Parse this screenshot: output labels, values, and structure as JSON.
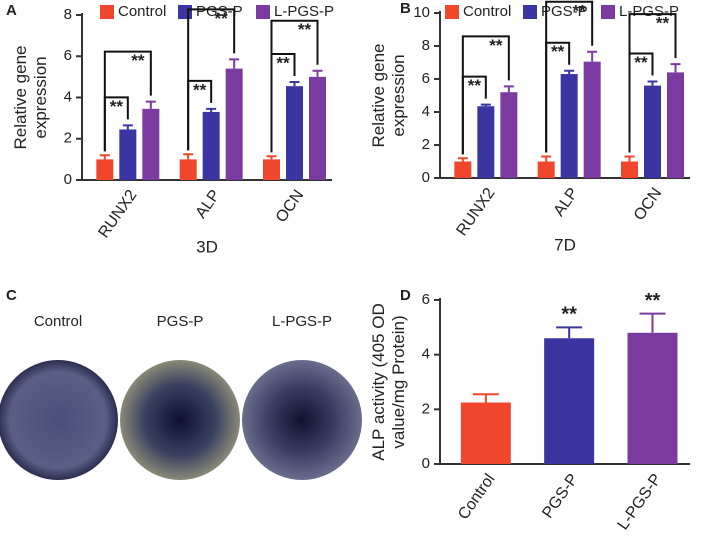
{
  "chart_data": [
    {
      "type": "grouped_bar",
      "panel": "A",
      "ylabel": [
        "Relative gene",
        "expression"
      ],
      "xlabel": "3D",
      "categories": [
        "RUNX2",
        "ALP",
        "OCN"
      ],
      "series": [
        {
          "name": "Control",
          "color": "#f0462b",
          "values": [
            1,
            1,
            1
          ],
          "errors": [
            0.2,
            0.25,
            0.15
          ]
        },
        {
          "name": "PGS-P",
          "color": "#3a35a0",
          "values": [
            2.45,
            3.3,
            4.55
          ],
          "errors": [
            0.2,
            0.15,
            0.2
          ]
        },
        {
          "name": "L-PGS-P",
          "color": "#7b3aa0",
          "values": [
            3.45,
            5.4,
            5.0
          ],
          "errors": [
            0.35,
            0.45,
            0.3
          ]
        }
      ],
      "brackets": [
        [
          0,
          1
        ],
        [
          0,
          2
        ]
      ],
      "bracket_label": "**",
      "ylim": [
        0,
        8
      ],
      "yticks": [
        0,
        2,
        4,
        6,
        8
      ]
    },
    {
      "type": "grouped_bar",
      "panel": "B",
      "ylabel": [
        "Relative gene",
        "expression"
      ],
      "xlabel": "7D",
      "categories": [
        "RUNX2",
        "ALP",
        "OCN"
      ],
      "series": [
        {
          "name": "Control",
          "color": "#f0462b",
          "values": [
            1,
            1,
            1
          ],
          "errors": [
            0.2,
            0.3,
            0.3
          ]
        },
        {
          "name": "PGS-P",
          "color": "#3a35a0",
          "values": [
            4.35,
            6.3,
            5.6
          ],
          "errors": [
            0.1,
            0.2,
            0.25
          ]
        },
        {
          "name": "L-PGS-P",
          "color": "#7b3aa0",
          "values": [
            5.2,
            7.05,
            6.4
          ],
          "errors": [
            0.35,
            0.6,
            0.5
          ]
        }
      ],
      "brackets": [
        [
          0,
          1
        ],
        [
          0,
          2
        ]
      ],
      "bracket_label": "**",
      "ylim": [
        0,
        10
      ],
      "yticks": [
        0,
        2,
        4,
        6,
        8,
        10
      ]
    },
    {
      "type": "bar",
      "panel": "D",
      "ylabel": [
        "ALP activity (405 OD",
        "value/mg Protein)"
      ],
      "categories": [
        "Control",
        "PGS-P",
        "L-PGS-P"
      ],
      "values": [
        2.25,
        4.6,
        4.8
      ],
      "errors": [
        0.3,
        0.4,
        0.7
      ],
      "colors": [
        "#f0462b",
        "#3a35a0",
        "#7b3aa0"
      ],
      "bar_labels": [
        null,
        "**",
        "**"
      ],
      "ylim": [
        0,
        6
      ],
      "yticks": [
        0,
        2,
        4,
        6
      ]
    }
  ],
  "panel_c": {
    "panel": "C",
    "labels": [
      "Control",
      "PGS-P",
      "L-PGS-P"
    ]
  }
}
